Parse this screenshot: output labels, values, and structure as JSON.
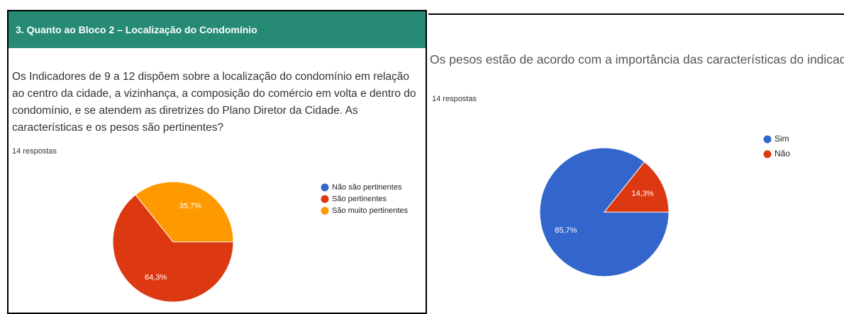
{
  "header": {
    "title": "3.  Quanto ao Bloco 2 – Localização do Condomínio"
  },
  "chart_data": [
    {
      "type": "pie",
      "title": "Os Indicadores de 9 a 12 dispõem sobre a localização do condomínio em relação ao centro da cidade, a vizinhança, a composição do comércio em volta e dentro do condomínio, e se atendem as diretrizes do Plano Diretor da Cidade. As características e os pesos são pertinentes?",
      "subtitle": "14 respostas",
      "categories": [
        "Não são pertinentes",
        "São pertinentes",
        "São muito pertinentes"
      ],
      "values": [
        0,
        64.3,
        35.7
      ],
      "value_labels": [
        null,
        "64,3%",
        "35,7%"
      ],
      "colors": [
        "#3366cc",
        "#dc3912",
        "#ff9900"
      ],
      "legend": "right"
    },
    {
      "type": "pie",
      "title": "Os pesos estão de acordo com a importância das características do indicador?",
      "subtitle": "14 respostas",
      "categories": [
        "Sim",
        "Não"
      ],
      "values": [
        85.7,
        14.3
      ],
      "value_labels": [
        "85,7%",
        "14,3%"
      ],
      "colors": [
        "#3366cc",
        "#dc3912"
      ],
      "legend": "right"
    }
  ]
}
